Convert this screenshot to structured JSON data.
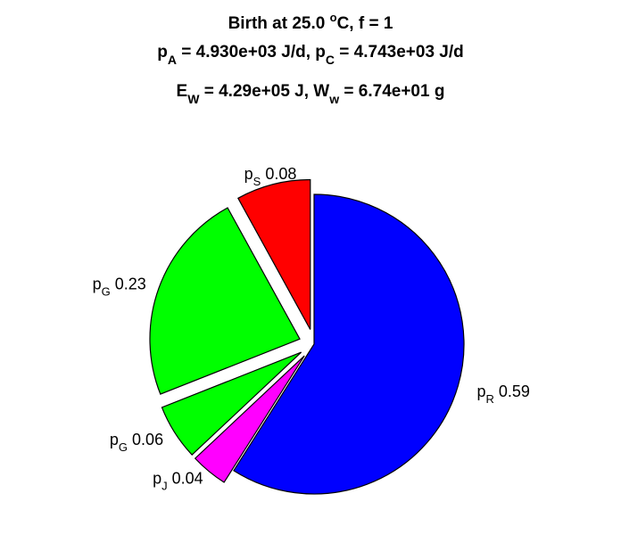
{
  "chart_data": {
    "type": "pie",
    "title": {
      "line1": {
        "main": "Birth at 25.0 ",
        "sup": "o",
        "rest": "C, f = 1"
      },
      "line2": [
        {
          "sym": "p",
          "sub": "A",
          "text": " = 4.930e+03 J/d, "
        },
        {
          "sym": "p",
          "sub": "C",
          "text": " = 4.743e+03 J/d"
        }
      ],
      "line3": [
        {
          "sym": "E",
          "sub": "W",
          "text": " = 4.29e+05 J, "
        },
        {
          "sym": "W",
          "sub": "w",
          "text": " = 6.74e+01 g"
        }
      ]
    },
    "slices": [
      {
        "sym": "p",
        "sub": "R",
        "value_label": "0.59",
        "value": 0.59,
        "color": "#0000ff",
        "exploded": false
      },
      {
        "sym": "p",
        "sub": "J",
        "value_label": "0.04",
        "value": 0.04,
        "color": "#ff00ff",
        "exploded": true
      },
      {
        "sym": "p",
        "sub": "G",
        "value_label": "0.06",
        "value": 0.06,
        "color": "#00ff00",
        "exploded": true
      },
      {
        "sym": "p",
        "sub": "G",
        "value_label": "0.23",
        "value": 0.23,
        "color": "#00ff00",
        "exploded": true
      },
      {
        "sym": "p",
        "sub": "S",
        "value_label": "0.08",
        "value": 0.08,
        "color": "#ff0000",
        "exploded": true
      }
    ],
    "start": "top",
    "direction": "clockwise"
  }
}
